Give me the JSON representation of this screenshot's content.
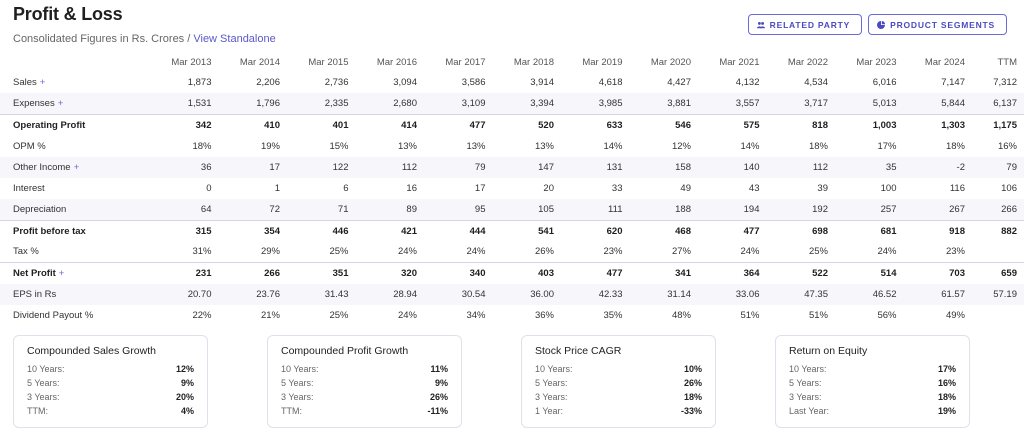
{
  "header": {
    "title": "Profit & Loss",
    "subtitle": "Consolidated Figures in Rs. Crores /",
    "link": "View Standalone"
  },
  "buttons": {
    "related_party": "RELATED PARTY",
    "product_segments": "PRODUCT SEGMENTS"
  },
  "table": {
    "columns": [
      "Mar 2013",
      "Mar 2014",
      "Mar 2015",
      "Mar 2016",
      "Mar 2017",
      "Mar 2018",
      "Mar 2019",
      "Mar 2020",
      "Mar 2021",
      "Mar 2022",
      "Mar 2023",
      "Mar 2024",
      "TTM"
    ],
    "rows": [
      {
        "label": "Sales",
        "plus": "+",
        "style": "",
        "values": [
          "1,873",
          "2,206",
          "2,736",
          "3,094",
          "3,586",
          "3,914",
          "4,618",
          "4,427",
          "4,132",
          "4,534",
          "6,016",
          "7,147",
          "7,312"
        ]
      },
      {
        "label": "Expenses",
        "plus": "+",
        "style": "alt",
        "values": [
          "1,531",
          "1,796",
          "2,335",
          "2,680",
          "3,109",
          "3,394",
          "3,985",
          "3,881",
          "3,557",
          "3,717",
          "5,013",
          "5,844",
          "6,137"
        ]
      },
      {
        "label": "Operating Profit",
        "plus": "",
        "style": "strong",
        "values": [
          "342",
          "410",
          "401",
          "414",
          "477",
          "520",
          "633",
          "546",
          "575",
          "818",
          "1,003",
          "1,303",
          "1,175"
        ]
      },
      {
        "label": "OPM %",
        "plus": "",
        "style": "",
        "values": [
          "18%",
          "19%",
          "15%",
          "13%",
          "13%",
          "13%",
          "14%",
          "12%",
          "14%",
          "18%",
          "17%",
          "18%",
          "16%"
        ]
      },
      {
        "label": "Other Income",
        "plus": "+",
        "style": "alt",
        "values": [
          "36",
          "17",
          "122",
          "112",
          "79",
          "147",
          "131",
          "158",
          "140",
          "112",
          "35",
          "-2",
          "79"
        ]
      },
      {
        "label": "Interest",
        "plus": "",
        "style": "",
        "values": [
          "0",
          "1",
          "6",
          "16",
          "17",
          "20",
          "33",
          "49",
          "43",
          "39",
          "100",
          "116",
          "106"
        ]
      },
      {
        "label": "Depreciation",
        "plus": "",
        "style": "alt",
        "values": [
          "64",
          "72",
          "71",
          "89",
          "95",
          "105",
          "111",
          "188",
          "194",
          "192",
          "257",
          "267",
          "266"
        ]
      },
      {
        "label": "Profit before tax",
        "plus": "",
        "style": "strong",
        "values": [
          "315",
          "354",
          "446",
          "421",
          "444",
          "541",
          "620",
          "468",
          "477",
          "698",
          "681",
          "918",
          "882"
        ]
      },
      {
        "label": "Tax %",
        "plus": "",
        "style": "",
        "values": [
          "31%",
          "29%",
          "25%",
          "24%",
          "24%",
          "26%",
          "23%",
          "27%",
          "24%",
          "25%",
          "24%",
          "23%",
          ""
        ]
      },
      {
        "label": "Net Profit",
        "plus": "+",
        "style": "strong",
        "values": [
          "231",
          "266",
          "351",
          "320",
          "340",
          "403",
          "477",
          "341",
          "364",
          "522",
          "514",
          "703",
          "659"
        ]
      },
      {
        "label": "EPS in Rs",
        "plus": "",
        "style": "alt",
        "values": [
          "20.70",
          "23.76",
          "31.43",
          "28.94",
          "30.54",
          "36.00",
          "42.33",
          "31.14",
          "33.06",
          "47.35",
          "46.52",
          "61.57",
          "57.19"
        ]
      },
      {
        "label": "Dividend Payout %",
        "plus": "",
        "style": "",
        "values": [
          "22%",
          "21%",
          "25%",
          "24%",
          "34%",
          "36%",
          "35%",
          "48%",
          "51%",
          "51%",
          "56%",
          "49%",
          ""
        ]
      }
    ]
  },
  "cards": [
    {
      "title": "Compounded Sales Growth",
      "rows": [
        {
          "k": "10 Years:",
          "v": "12%"
        },
        {
          "k": "5 Years:",
          "v": "9%"
        },
        {
          "k": "3 Years:",
          "v": "20%"
        },
        {
          "k": "TTM:",
          "v": "4%"
        }
      ]
    },
    {
      "title": "Compounded Profit Growth",
      "rows": [
        {
          "k": "10 Years:",
          "v": "11%"
        },
        {
          "k": "5 Years:",
          "v": "9%"
        },
        {
          "k": "3 Years:",
          "v": "26%"
        },
        {
          "k": "TTM:",
          "v": "-11%"
        }
      ]
    },
    {
      "title": "Stock Price CAGR",
      "rows": [
        {
          "k": "10 Years:",
          "v": "10%"
        },
        {
          "k": "5 Years:",
          "v": "26%"
        },
        {
          "k": "3 Years:",
          "v": "18%"
        },
        {
          "k": "1 Year:",
          "v": "-33%"
        }
      ]
    },
    {
      "title": "Return on Equity",
      "rows": [
        {
          "k": "10 Years:",
          "v": "17%"
        },
        {
          "k": "5 Years:",
          "v": "16%"
        },
        {
          "k": "3 Years:",
          "v": "18%"
        },
        {
          "k": "Last Year:",
          "v": "19%"
        }
      ]
    }
  ],
  "colors": {
    "accent": "#5b59c9",
    "row_alt": "#f6f6fb"
  },
  "icons": {
    "related_party": "users-icon",
    "product_segments": "segments-icon"
  }
}
